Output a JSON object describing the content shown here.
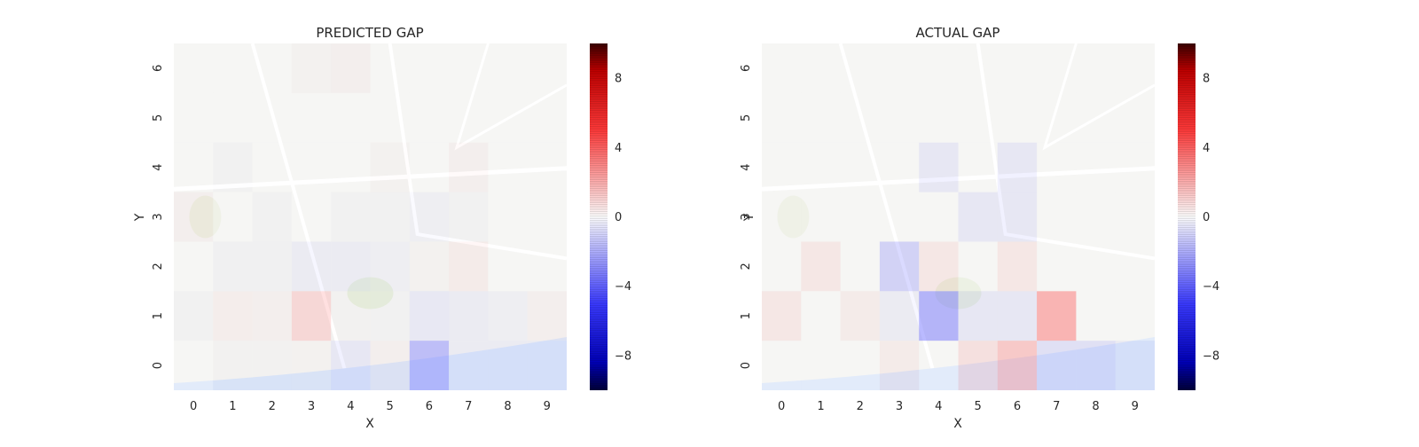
{
  "chart_data": [
    {
      "type": "heatmap",
      "title": "PREDICTED GAP",
      "xlabel": "X",
      "ylabel": "Y",
      "x_ticks": [
        "0",
        "1",
        "2",
        "3",
        "4",
        "5",
        "6",
        "7",
        "8",
        "9"
      ],
      "y_ticks": [
        "0",
        "1",
        "2",
        "3",
        "4",
        "5",
        "6"
      ],
      "ylim": [
        -0.5,
        6.5
      ],
      "color_scale": {
        "min": -10,
        "max": 10,
        "ticks": [
          "−8",
          "−4",
          "0",
          "4",
          "8"
        ],
        "tick_values": [
          -8,
          -4,
          0,
          4,
          8
        ],
        "low_color": "#0000ff",
        "mid_color": "#ffffff",
        "high_color": "#ff0000"
      },
      "background": "street map (Porto)",
      "grid": false,
      "rows_bottom_to_top": [
        [
          0,
          0.3,
          0.2,
          0.5,
          -2.0,
          1.0,
          -4.5,
          -1.5,
          -1.5,
          -1.5
        ],
        [
          -0.2,
          1.2,
          1.0,
          3.2,
          0.2,
          -0.5,
          -1.8,
          -1.5,
          -1.0,
          1.0
        ],
        [
          0,
          -0.8,
          -0.8,
          -1.5,
          -1.5,
          -1.0,
          0.5,
          1.5,
          0,
          0
        ],
        [
          1.0,
          0,
          -0.5,
          0,
          -0.3,
          -0.3,
          -1.0,
          -0.5,
          0,
          0
        ],
        [
          0,
          -0.3,
          0,
          0,
          0,
          0.5,
          0,
          1.0,
          0,
          0
        ],
        [
          0,
          0,
          0,
          0,
          0,
          0,
          0,
          0,
          0,
          0
        ],
        [
          0,
          0,
          0,
          0.5,
          1.0,
          0,
          0,
          0,
          0,
          0
        ]
      ]
    },
    {
      "type": "heatmap",
      "title": "ACTUAL GAP",
      "xlabel": "X",
      "ylabel": "Y",
      "x_ticks": [
        "0",
        "1",
        "2",
        "3",
        "4",
        "5",
        "6",
        "7",
        "8",
        "9"
      ],
      "y_ticks": [
        "0",
        "1",
        "2",
        "3",
        "4",
        "5",
        "6"
      ],
      "ylim": [
        -0.5,
        6.5
      ],
      "color_scale": {
        "min": -10,
        "max": 10,
        "ticks": [
          "−8",
          "−4",
          "0",
          "4",
          "8"
        ],
        "tick_values": [
          -8,
          -4,
          0,
          4,
          8
        ],
        "low_color": "#0000ff",
        "mid_color": "#ffffff",
        "high_color": "#ff0000"
      },
      "background": "street map (Porto)",
      "grid": false,
      "rows_bottom_to_top": [
        [
          0,
          0,
          0,
          1.5,
          0,
          2.5,
          4.0,
          -2.5,
          -2.5,
          -1.5
        ],
        [
          2.0,
          0,
          1.5,
          -1.5,
          -5.0,
          -2.0,
          -2.0,
          5.0,
          0,
          0
        ],
        [
          0,
          2.0,
          0,
          -3.5,
          2.0,
          0,
          2.0,
          0,
          0,
          0
        ],
        [
          0,
          0,
          0,
          0,
          0,
          -2.0,
          -2.0,
          0,
          0,
          0
        ],
        [
          0,
          0,
          0,
          0,
          -2.0,
          0,
          -2.0,
          0,
          0,
          0
        ],
        [
          0,
          0,
          0,
          0,
          0,
          0,
          0,
          0,
          0,
          0
        ],
        [
          0,
          0,
          0,
          0,
          0,
          0,
          0,
          0,
          0,
          0
        ]
      ]
    }
  ]
}
